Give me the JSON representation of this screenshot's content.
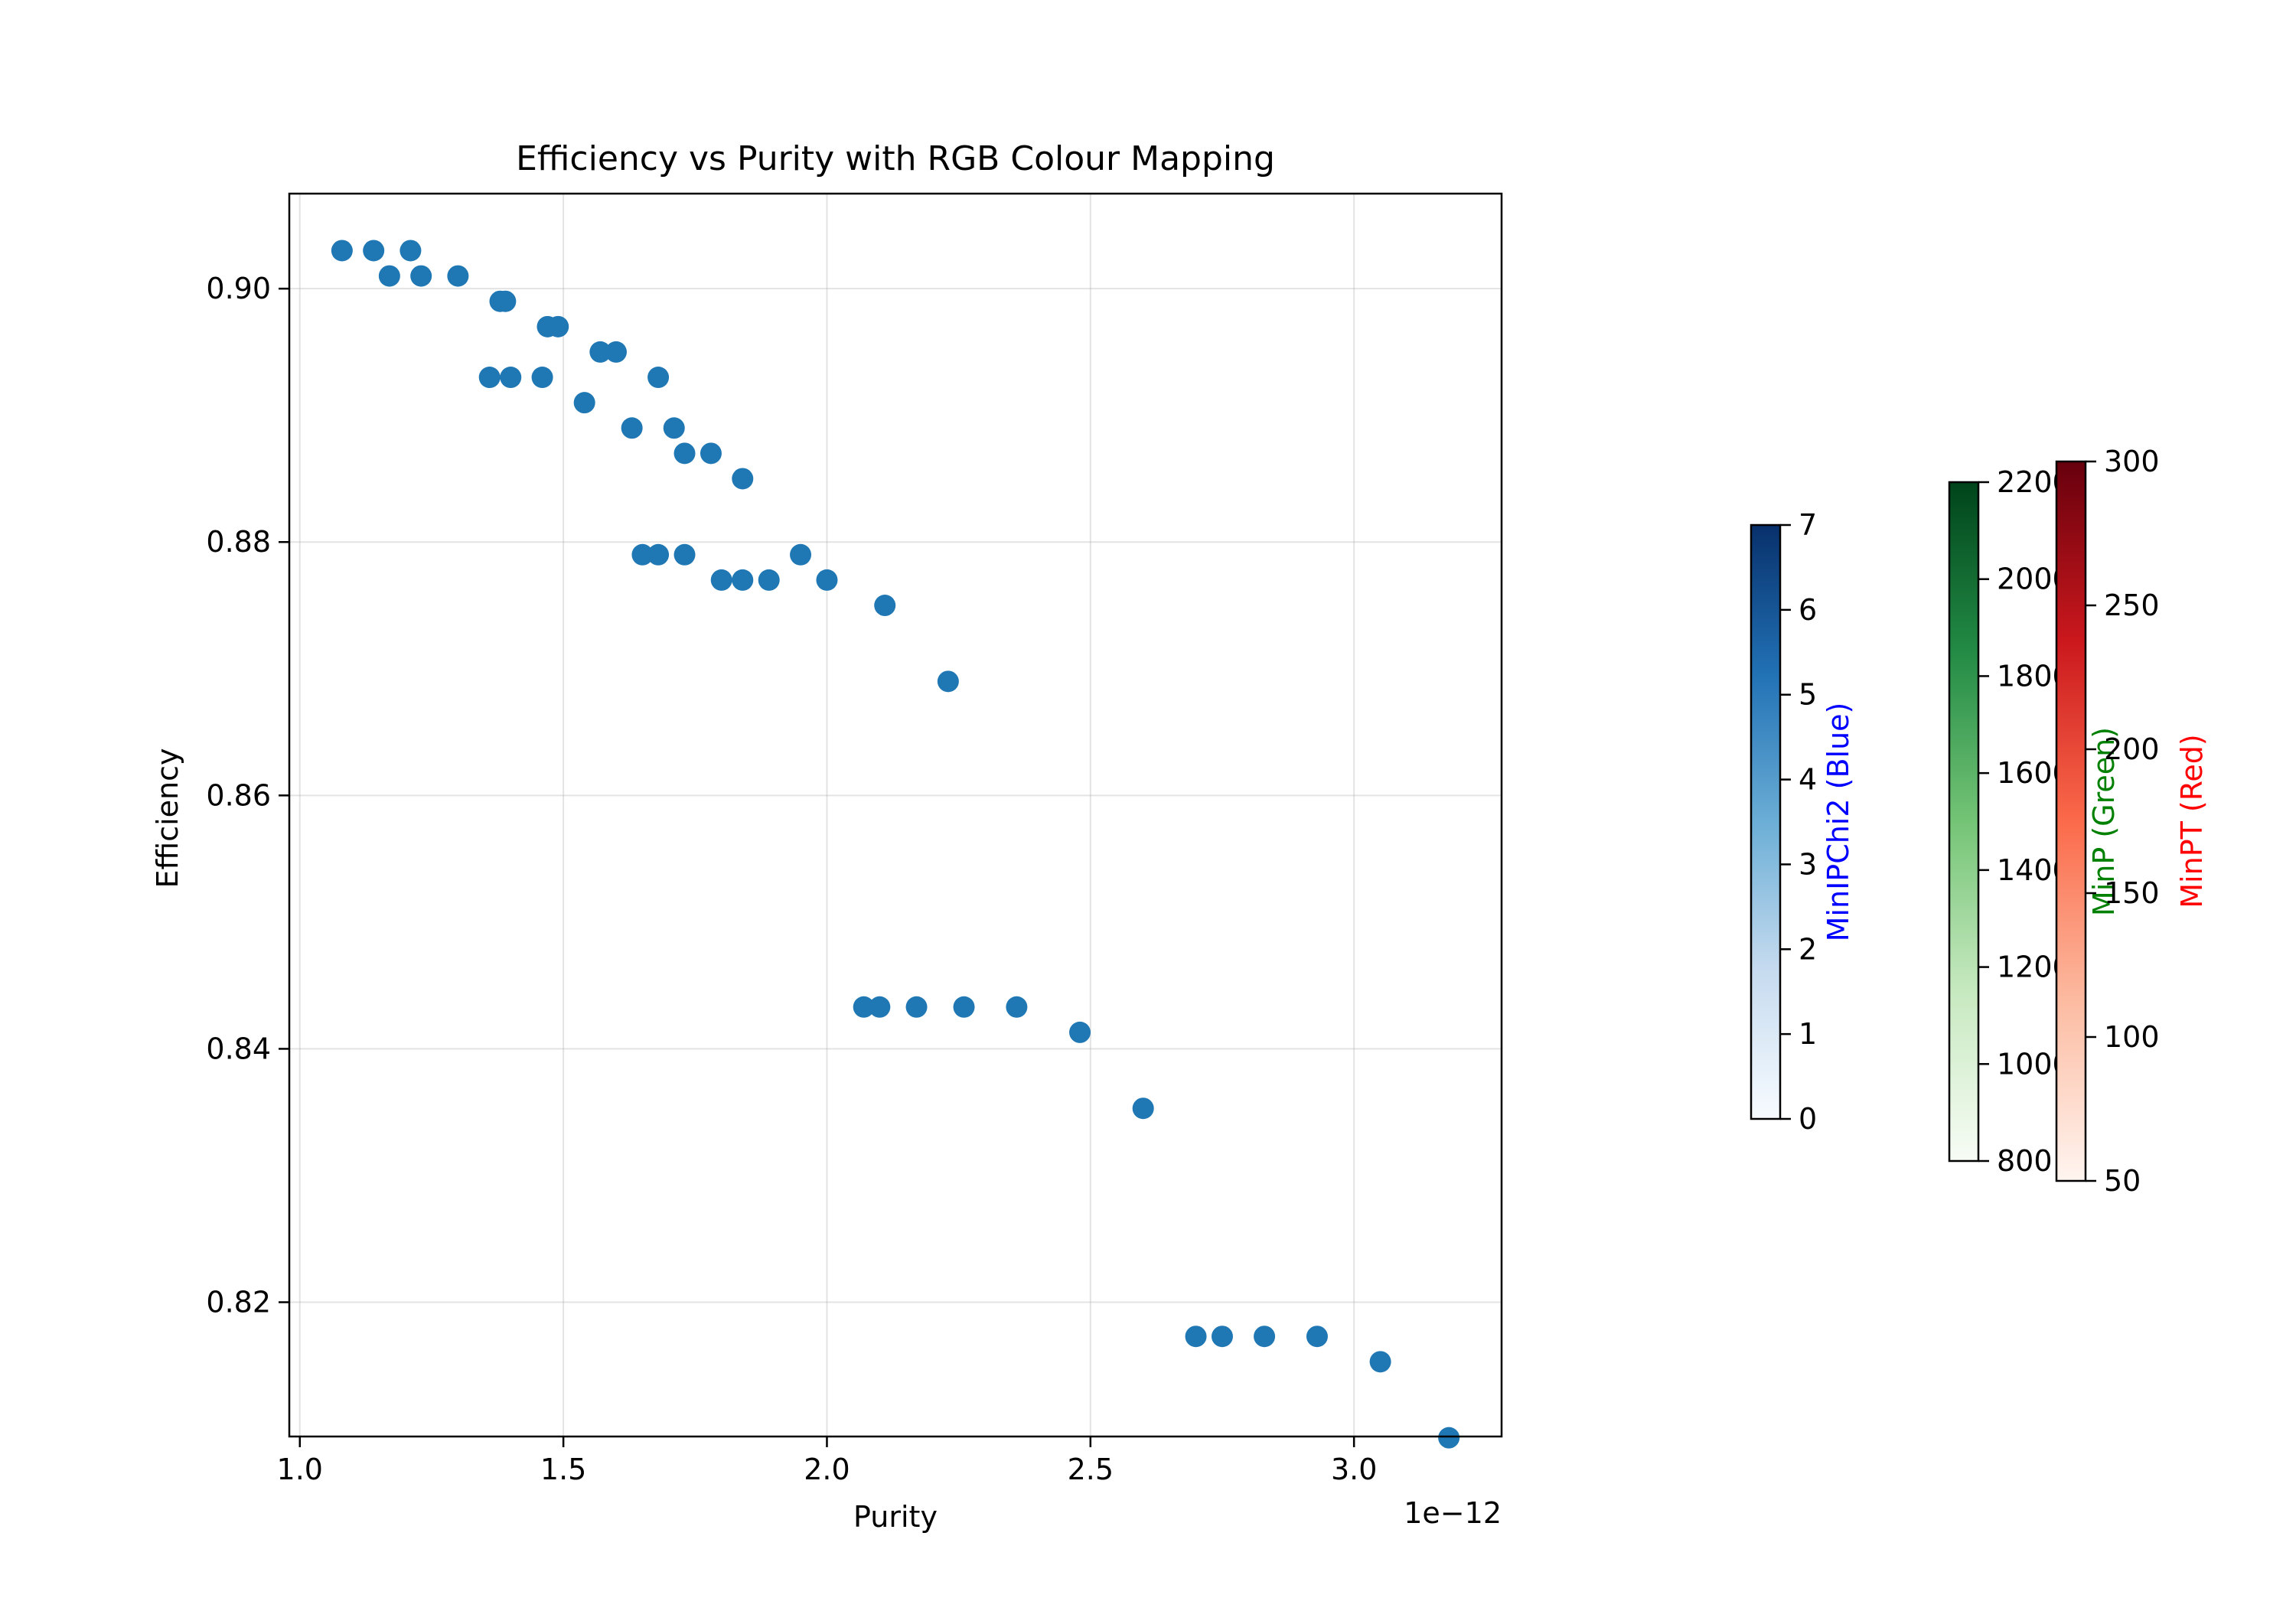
{
  "chart_data": {
    "type": "scatter",
    "title": "Efficiency vs Purity with RGB Colour Mapping",
    "xlabel": "Purity",
    "ylabel": "Efficiency",
    "x_offset_label": "1e−12",
    "x_scale_exponent": -12,
    "xlim": [
      0.98,
      3.28
    ],
    "ylim": [
      0.8094,
      0.9075
    ],
    "xticks": [
      1.0,
      1.5,
      2.0,
      2.5,
      3.0
    ],
    "xtick_labels": [
      "1.0",
      "1.5",
      "2.0",
      "2.5",
      "3.0"
    ],
    "yticks": [
      0.82,
      0.84,
      0.86,
      0.88,
      0.9
    ],
    "ytick_labels": [
      "0.82",
      "0.84",
      "0.86",
      "0.88",
      "0.90"
    ],
    "grid": true,
    "point_color": "#1f77b4",
    "series": [
      {
        "points": [
          {
            "x": 1.08,
            "y": 0.903
          },
          {
            "x": 1.14,
            "y": 0.903
          },
          {
            "x": 1.21,
            "y": 0.903
          },
          {
            "x": 1.17,
            "y": 0.901
          },
          {
            "x": 1.23,
            "y": 0.901
          },
          {
            "x": 1.3,
            "y": 0.901
          },
          {
            "x": 1.38,
            "y": 0.899
          },
          {
            "x": 1.39,
            "y": 0.899
          },
          {
            "x": 1.47,
            "y": 0.897
          },
          {
            "x": 1.49,
            "y": 0.897
          },
          {
            "x": 1.57,
            "y": 0.895
          },
          {
            "x": 1.6,
            "y": 0.895
          },
          {
            "x": 1.36,
            "y": 0.893
          },
          {
            "x": 1.4,
            "y": 0.893
          },
          {
            "x": 1.46,
            "y": 0.893
          },
          {
            "x": 1.68,
            "y": 0.893
          },
          {
            "x": 1.54,
            "y": 0.891
          },
          {
            "x": 1.63,
            "y": 0.889
          },
          {
            "x": 1.71,
            "y": 0.889
          },
          {
            "x": 1.73,
            "y": 0.887
          },
          {
            "x": 1.78,
            "y": 0.887
          },
          {
            "x": 1.84,
            "y": 0.885
          },
          {
            "x": 1.65,
            "y": 0.879
          },
          {
            "x": 1.68,
            "y": 0.879
          },
          {
            "x": 1.73,
            "y": 0.879
          },
          {
            "x": 1.95,
            "y": 0.879
          },
          {
            "x": 1.8,
            "y": 0.877
          },
          {
            "x": 1.84,
            "y": 0.877
          },
          {
            "x": 1.89,
            "y": 0.877
          },
          {
            "x": 2.0,
            "y": 0.877
          },
          {
            "x": 2.11,
            "y": 0.875
          },
          {
            "x": 2.23,
            "y": 0.869
          },
          {
            "x": 2.07,
            "y": 0.8433
          },
          {
            "x": 2.1,
            "y": 0.8433
          },
          {
            "x": 2.17,
            "y": 0.8433
          },
          {
            "x": 2.26,
            "y": 0.8433
          },
          {
            "x": 2.36,
            "y": 0.8433
          },
          {
            "x": 2.48,
            "y": 0.8413
          },
          {
            "x": 2.6,
            "y": 0.8353
          },
          {
            "x": 2.7,
            "y": 0.8173
          },
          {
            "x": 2.75,
            "y": 0.8173
          },
          {
            "x": 2.83,
            "y": 0.8173
          },
          {
            "x": 2.93,
            "y": 0.8173
          },
          {
            "x": 3.05,
            "y": 0.8153
          },
          {
            "x": 3.18,
            "y": 0.8093
          }
        ]
      }
    ],
    "colorbars": [
      {
        "label": "MinIPChi2 (Blue)",
        "label_color": "#0000ff",
        "cmap": "Blues",
        "cmap_colors": [
          "#f7fbff",
          "#c6dbef",
          "#6baed6",
          "#2171b5",
          "#08306b"
        ],
        "range": [
          0,
          7
        ],
        "ticks": [
          0,
          1,
          2,
          3,
          4,
          5,
          6,
          7
        ],
        "tick_labels": [
          "0",
          "1",
          "2",
          "3",
          "4",
          "5",
          "6",
          "7"
        ]
      },
      {
        "label": "MinP (Green)",
        "label_color": "#008000",
        "cmap": "Greens",
        "cmap_colors": [
          "#f7fcf5",
          "#c7e9c0",
          "#74c476",
          "#238b45",
          "#00441b"
        ],
        "range": [
          800,
          2200
        ],
        "ticks": [
          800,
          1000,
          1200,
          1400,
          1600,
          1800,
          2000,
          2200
        ],
        "tick_labels": [
          "800",
          "1000",
          "1200",
          "1400",
          "1600",
          "1800",
          "2000",
          "2200"
        ]
      },
      {
        "label": "MinPT (Red)",
        "label_color": "#ff0000",
        "cmap": "Reds",
        "cmap_colors": [
          "#fff5f0",
          "#fcbba1",
          "#fb6a4a",
          "#cb181d",
          "#67000d"
        ],
        "range": [
          50,
          300
        ],
        "ticks": [
          50,
          100,
          150,
          200,
          250,
          300
        ],
        "tick_labels": [
          "50",
          "100",
          "150",
          "200",
          "250",
          "300"
        ]
      }
    ]
  }
}
